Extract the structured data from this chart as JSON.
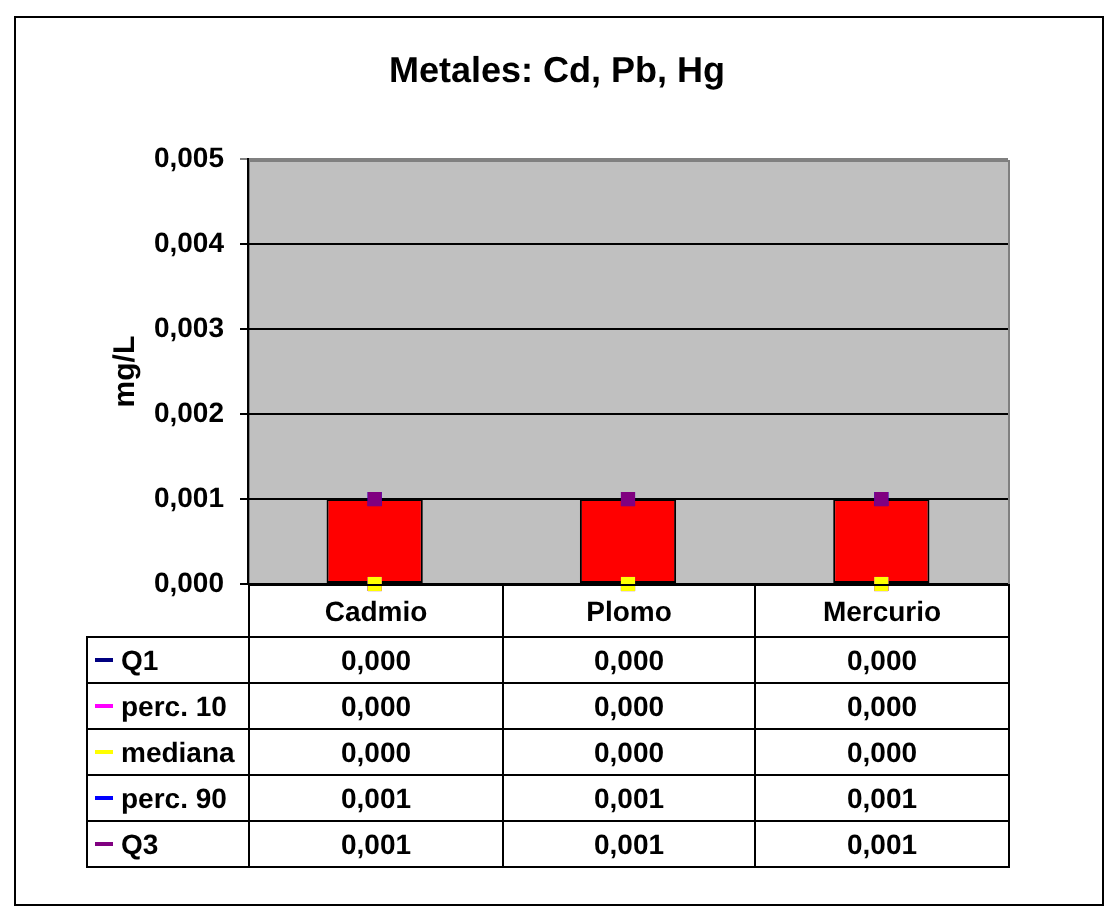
{
  "chart_data": {
    "type": "bar",
    "title": "Metales: Cd, Pb, Hg",
    "ylabel": "mg/L",
    "categories": [
      "Cadmio",
      "Plomo",
      "Mercurio"
    ],
    "series": [
      {
        "color": "#ff0000",
        "values": [
          0.001,
          0.001,
          0.001
        ]
      },
      {
        "name": "Q1",
        "type": "scatter",
        "color": "#000080",
        "values": [
          0,
          0,
          0
        ],
        "value_labels": [
          "0,000",
          "0,000",
          "0,000"
        ]
      },
      {
        "name": "perc. 10",
        "type": "scatter",
        "color": "#ff00ff",
        "values": [
          0,
          0,
          0
        ],
        "value_labels": [
          "0,000",
          "0,000",
          "0,000"
        ]
      },
      {
        "name": "mediana",
        "type": "scatter",
        "color": "#ffff00",
        "values": [
          0,
          0,
          0
        ],
        "value_labels": [
          "0,000",
          "0,000",
          "0,000"
        ]
      },
      {
        "name": "perc. 90",
        "type": "scatter",
        "color": "#0000ff",
        "values": [
          0.001,
          0.001,
          0.001
        ],
        "value_labels": [
          "0,001",
          "0,001",
          "0,001"
        ]
      },
      {
        "name": "Q3",
        "type": "scatter",
        "color": "#800080",
        "values": [
          0.001,
          0.001,
          0.001
        ],
        "value_labels": [
          "0,001",
          "0,001",
          "0,001"
        ]
      }
    ],
    "ylim": [
      0,
      0.005
    ],
    "yticks": [
      {
        "value": 0,
        "label": "0,000"
      },
      {
        "value": 0.001,
        "label": "0,001"
      },
      {
        "value": 0.002,
        "label": "0,002"
      },
      {
        "value": 0.003,
        "label": "0,003"
      },
      {
        "value": 0.004,
        "label": "0,004"
      },
      {
        "value": 0.005,
        "label": "0,005"
      }
    ],
    "grid": "y",
    "legend": "bottom left",
    "marker": "square"
  }
}
